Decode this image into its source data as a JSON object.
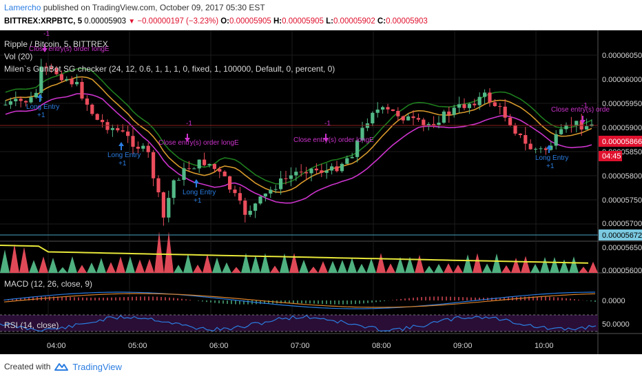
{
  "header": {
    "author": "Lamercho",
    "published": " published on TradingView.com, October 09, 2017 05:30 EST",
    "symbol": "BITTREX:XRPBTC, 5",
    "last": "0.00005903",
    "change": "−0.00000197 (−3.23%)",
    "open_label": "O:",
    "open": "0.00005905",
    "high_label": "H:",
    "high": "0.00005905",
    "low_label": "L:",
    "low": "0.00005902",
    "close_label": "C:",
    "close": "0.00005903"
  },
  "legend": {
    "main": "Ripple / Bitcoin, 5, BITTREX",
    "vol": "Vol (20)",
    "strategy": "Milen`s GunBot SG checker (24, 12, 0.6, 1, 1, 1, 0, fixed, 1, 100000, Default, 0, percent, 0)",
    "macd": "MACD (12, 26, close, 9)",
    "rsi": "RSI (14, close)"
  },
  "price_axis": {
    "labels": [
      "0.00006050",
      "0.00006000",
      "0.00005950",
      "0.00005900",
      "0.00005850",
      "0.00005800",
      "0.00005750",
      "0.00005700",
      "0.00005650",
      "0.00005600"
    ],
    "current_price": "0.00005866",
    "countdown": "04:45",
    "vol_marker": "0.00005672"
  },
  "macd_axis": {
    "zero": "0.0000"
  },
  "rsi_axis": {
    "fifty": "50.0000"
  },
  "time_axis": {
    "labels": [
      "04:00",
      "05:00",
      "06:00",
      "07:00",
      "08:00",
      "09:00",
      "10:00"
    ]
  },
  "annotations": {
    "long_entry": "Long Entry",
    "plus_one": "+1",
    "close_entry_1": "Close entry(s) order longE",
    "close_entry_2": "Close entry(s) order longE",
    "close_entry_3": "Close entry(s) order longE",
    "close_entry_4": "Close entry(s) orde",
    "minus_one": "-1"
  },
  "colors": {
    "up": "#53b987",
    "down": "#eb4d5c",
    "band_upper": "#1e7d1e",
    "band_mid": "#d99a2b",
    "band_lower": "#cc33cc",
    "vol_ma": "#e8e83a",
    "long_entry": "#2b7de1",
    "close_entry": "#cc33cc"
  },
  "footer": {
    "created_with": "Created with",
    "brand": "TradingView"
  }
}
